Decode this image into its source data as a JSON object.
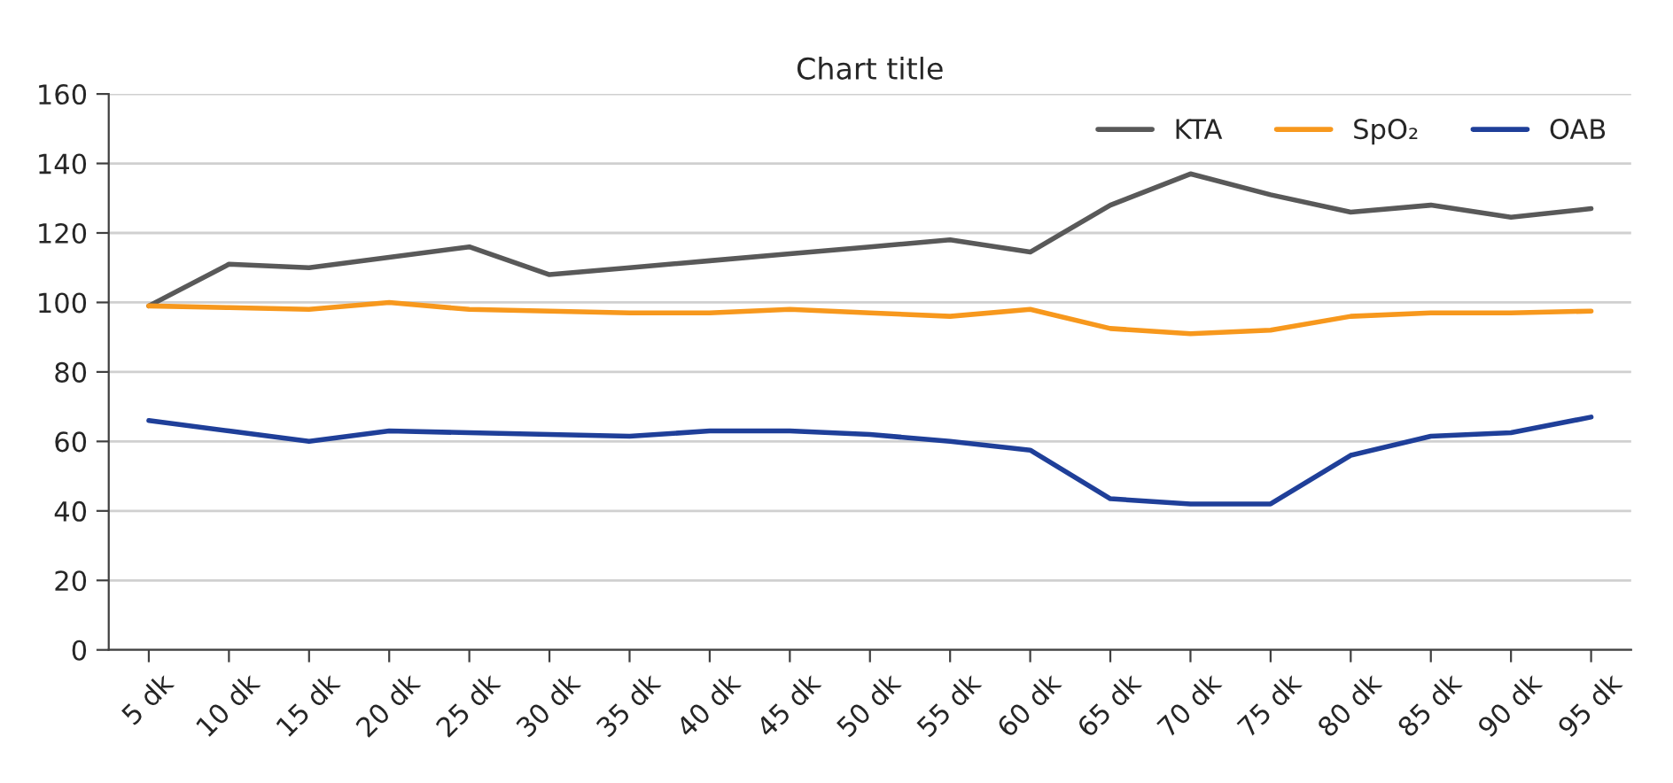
{
  "chart_data": {
    "type": "line",
    "title": "Chart title",
    "categories": [
      "5 dk",
      "10 dk",
      "15 dk",
      "20 dk",
      "25 dk",
      "30 dk",
      "35 dk",
      "40 dk",
      "45 dk",
      "50 dk",
      "55 dk",
      "60 dk",
      "65 dk",
      "70 dk",
      "75 dk",
      "80 dk",
      "85 dk",
      "90 dk",
      "95 dk"
    ],
    "series": [
      {
        "name": "KTA",
        "color": "#595959",
        "values": [
          99,
          111,
          110,
          113,
          116,
          108,
          110,
          112,
          114,
          116,
          118,
          114.5,
          128,
          137,
          131,
          126,
          128,
          124.5,
          127
        ]
      },
      {
        "name": "SpO₂",
        "color": "#f7981d",
        "values": [
          99,
          98.5,
          98,
          100,
          98,
          97.5,
          97,
          97,
          98,
          97,
          96,
          98,
          92.5,
          91,
          92,
          96,
          97,
          97,
          97.5
        ]
      },
      {
        "name": "OAB",
        "color": "#1f3f99",
        "values": [
          66,
          63,
          60,
          63,
          62.5,
          62,
          61.5,
          63,
          63,
          62,
          60,
          57.5,
          43.5,
          42,
          42,
          56,
          61.5,
          62.5,
          67
        ]
      }
    ],
    "ylim": [
      0,
      160
    ],
    "yticks": [
      0,
      20,
      40,
      60,
      80,
      100,
      120,
      140,
      160
    ],
    "grid": "y",
    "legend": "top right",
    "marker": "none",
    "line_style": "solid"
  }
}
